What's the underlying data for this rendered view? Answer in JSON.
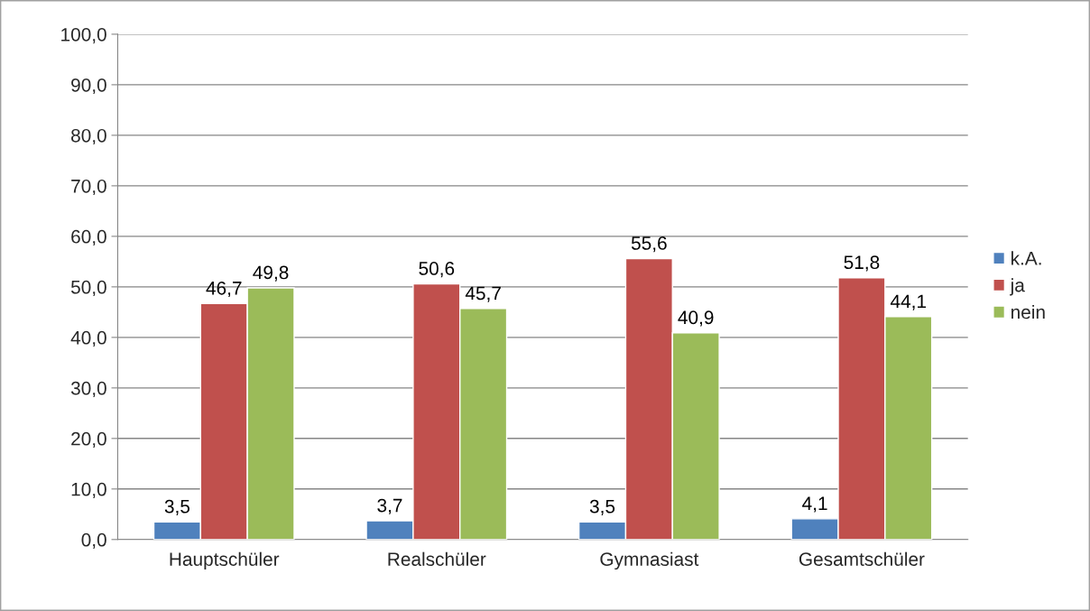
{
  "chart_data": {
    "type": "bar",
    "categories": [
      "Hauptschüler",
      "Realschüler",
      "Gymnasiast",
      "Gesamtschüler"
    ],
    "series": [
      {
        "name": "k.A.",
        "color": "#4f81bd",
        "values": [
          3.5,
          3.7,
          3.5,
          4.1
        ],
        "value_labels": [
          "3,5",
          "3,7",
          "3,5",
          "4,1"
        ]
      },
      {
        "name": "ja",
        "color": "#c0504d",
        "values": [
          46.7,
          50.6,
          55.6,
          51.8
        ],
        "value_labels": [
          "46,7",
          "50,6",
          "55,6",
          "51,8"
        ]
      },
      {
        "name": "nein",
        "color": "#9bbb59",
        "values": [
          49.8,
          45.7,
          40.9,
          44.1
        ],
        "value_labels": [
          "49,8",
          "45,7",
          "40,9",
          "44,1"
        ]
      }
    ],
    "ylim": [
      0,
      100
    ],
    "yticks": [
      {
        "value": 0,
        "label": "0,0"
      },
      {
        "value": 10,
        "label": "10,0"
      },
      {
        "value": 20,
        "label": "20,0"
      },
      {
        "value": 30,
        "label": "30,0"
      },
      {
        "value": 40,
        "label": "40,0"
      },
      {
        "value": 50,
        "label": "50,0"
      },
      {
        "value": 60,
        "label": "60,0"
      },
      {
        "value": 70,
        "label": "70,0"
      },
      {
        "value": 80,
        "label": "80,0"
      },
      {
        "value": 90,
        "label": "90,0"
      },
      {
        "value": 100,
        "label": "100,0"
      }
    ],
    "grid": "y",
    "legend": "right"
  }
}
